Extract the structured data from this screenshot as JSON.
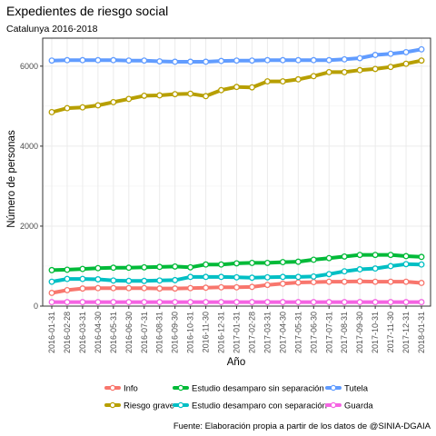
{
  "chart_data": {
    "type": "line",
    "title": "Expedientes de riesgo social",
    "subtitle": "Catalunya 2016-2018",
    "xlabel": "Año",
    "ylabel": "Número de personas",
    "caption": "Fuente: Elaboración propia a partir de los datos de @SINIA-DGAIA",
    "ylim": [
      0,
      6700
    ],
    "yticks": [
      0,
      2000,
      4000,
      6000
    ],
    "yticklabels": [
      "0",
      "2000",
      "4000",
      "6000"
    ],
    "grid": true,
    "legend_position": "bottom",
    "x": [
      "2016-01-31",
      "2016-02-28",
      "2016-03-31",
      "2016-04-30",
      "2016-05-31",
      "2016-06-30",
      "2016-07-31",
      "2016-08-31",
      "2016-09-30",
      "2016-10-31",
      "2016-11-30",
      "2016-12-31",
      "2017-01-31",
      "2017-02-28",
      "2017-03-31",
      "2017-04-30",
      "2017-05-31",
      "2017-06-30",
      "2017-07-31",
      "2017-08-31",
      "2017-09-30",
      "2017-10-31",
      "2017-11-30",
      "2017-12-31",
      "2018-01-31"
    ],
    "series": [
      {
        "name": "Info",
        "color": "#F8766D",
        "values": [
          330,
          400,
          440,
          450,
          450,
          450,
          450,
          440,
          440,
          450,
          460,
          470,
          470,
          480,
          530,
          560,
          590,
          600,
          610,
          610,
          620,
          610,
          610,
          610,
          580
        ]
      },
      {
        "name": "Riesgo grave",
        "color": "#B79F00",
        "values": [
          4850,
          4950,
          4970,
          5020,
          5100,
          5180,
          5260,
          5270,
          5300,
          5310,
          5250,
          5400,
          5480,
          5470,
          5620,
          5620,
          5670,
          5750,
          5850,
          5850,
          5900,
          5930,
          5980,
          6060,
          6140
        ]
      },
      {
        "name": "Estudio desamparo sin separación",
        "color": "#00BA38",
        "values": [
          900,
          910,
          930,
          950,
          960,
          960,
          970,
          980,
          990,
          970,
          1040,
          1040,
          1070,
          1080,
          1080,
          1100,
          1110,
          1160,
          1200,
          1240,
          1280,
          1280,
          1280,
          1250,
          1230
        ]
      },
      {
        "name": "Estudio desamparo con separación",
        "color": "#00BFC4",
        "values": [
          610,
          680,
          680,
          670,
          640,
          630,
          630,
          640,
          650,
          730,
          730,
          730,
          720,
          710,
          720,
          730,
          730,
          740,
          800,
          870,
          920,
          940,
          1000,
          1050,
          1040
        ]
      },
      {
        "name": "Tutela",
        "color": "#619CFF",
        "values": [
          6140,
          6150,
          6150,
          6150,
          6150,
          6140,
          6140,
          6120,
          6110,
          6110,
          6110,
          6130,
          6140,
          6140,
          6150,
          6150,
          6150,
          6150,
          6150,
          6170,
          6200,
          6280,
          6310,
          6350,
          6420
        ]
      },
      {
        "name": "Guarda",
        "color": "#F564E3",
        "values": [
          100,
          100,
          100,
          100,
          100,
          100,
          100,
          100,
          100,
          100,
          100,
          100,
          100,
          100,
          100,
          100,
          100,
          100,
          100,
          100,
          100,
          100,
          100,
          100,
          100
        ]
      }
    ]
  }
}
